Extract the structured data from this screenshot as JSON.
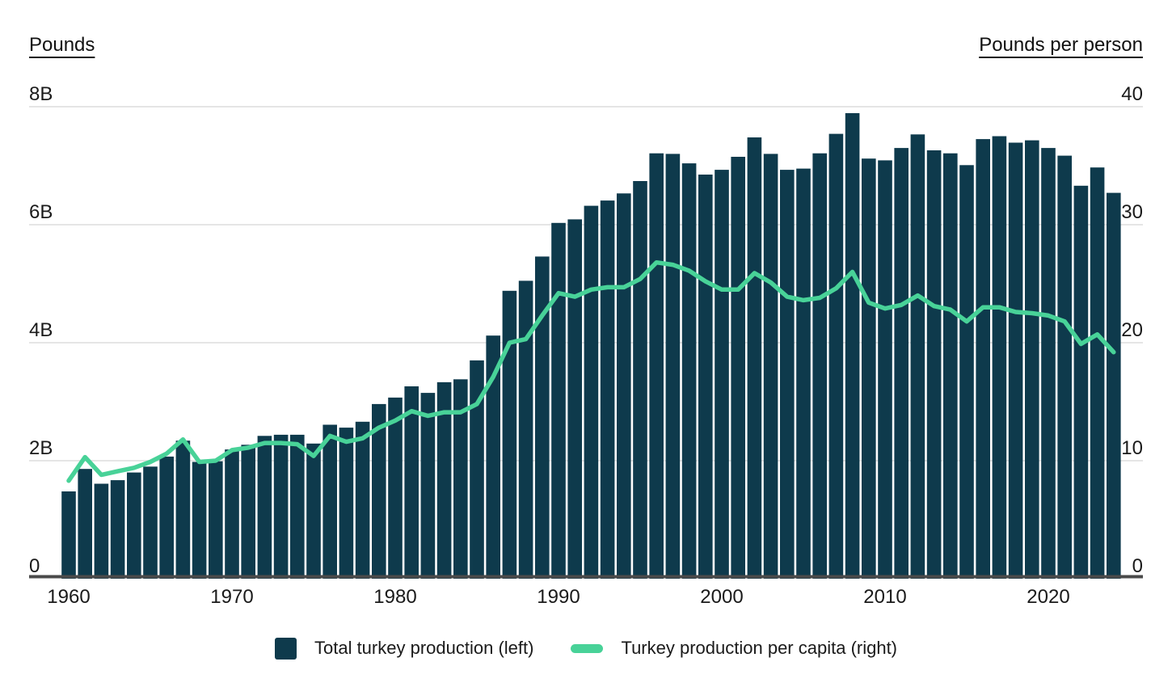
{
  "header": {
    "left_axis_title": "Pounds",
    "right_axis_title": "Pounds per person"
  },
  "legend": {
    "items": [
      {
        "label": "Total turkey production (left)",
        "swatch": "square",
        "color": "#0e3a4c"
      },
      {
        "label": "Turkey production per capita (right)",
        "swatch": "line",
        "color": "#48d298"
      }
    ]
  },
  "chart_data": {
    "type": "bar",
    "title": "",
    "x": [
      1960,
      1961,
      1962,
      1963,
      1964,
      1965,
      1966,
      1967,
      1968,
      1969,
      1970,
      1971,
      1972,
      1973,
      1974,
      1975,
      1976,
      1977,
      1978,
      1979,
      1980,
      1981,
      1982,
      1983,
      1984,
      1985,
      1986,
      1987,
      1988,
      1989,
      1990,
      1991,
      1992,
      1993,
      1994,
      1995,
      1996,
      1997,
      1998,
      1999,
      2000,
      2001,
      2002,
      2003,
      2004,
      2005,
      2006,
      2007,
      2008,
      2009,
      2010,
      2011,
      2012,
      2013,
      2014,
      2015,
      2016,
      2017,
      2018,
      2019,
      2020,
      2021,
      2022,
      2023,
      2024
    ],
    "series": [
      {
        "name": "Total turkey production (left)",
        "type": "bar",
        "axis": "left",
        "unit": "billion pounds",
        "color": "#0e3a4c",
        "values": [
          1.48,
          1.86,
          1.61,
          1.67,
          1.8,
          1.9,
          2.07,
          2.34,
          1.98,
          1.99,
          2.19,
          2.27,
          2.42,
          2.44,
          2.44,
          2.29,
          2.61,
          2.56,
          2.66,
          2.96,
          3.07,
          3.26,
          3.15,
          3.33,
          3.38,
          3.7,
          4.12,
          4.88,
          5.05,
          5.46,
          6.03,
          6.09,
          6.32,
          6.41,
          6.53,
          6.74,
          7.21,
          7.2,
          7.04,
          6.85,
          6.93,
          7.15,
          7.48,
          7.2,
          6.93,
          6.95,
          7.21,
          7.54,
          7.89,
          7.12,
          7.09,
          7.3,
          7.53,
          7.26,
          7.21,
          7.01,
          7.45,
          7.5,
          7.39,
          7.43,
          7.3,
          7.17,
          6.66,
          6.97,
          6.54
        ]
      },
      {
        "name": "Turkey production per capita (right)",
        "type": "line",
        "axis": "right",
        "unit": "pounds per person",
        "color": "#48d298",
        "values": [
          8.3,
          10.3,
          8.8,
          9.1,
          9.4,
          9.9,
          10.6,
          11.8,
          9.9,
          10.0,
          10.9,
          11.1,
          11.5,
          11.5,
          11.4,
          10.4,
          12.1,
          11.6,
          11.9,
          12.8,
          13.4,
          14.2,
          13.8,
          14.1,
          14.1,
          14.8,
          17.1,
          20.0,
          20.3,
          22.3,
          24.2,
          23.9,
          24.5,
          24.7,
          24.7,
          25.4,
          26.8,
          26.6,
          26.1,
          25.2,
          24.5,
          24.5,
          25.9,
          25.1,
          23.9,
          23.6,
          23.8,
          24.6,
          26.0,
          23.4,
          22.9,
          23.2,
          24.0,
          23.1,
          22.8,
          21.8,
          23.0,
          23.0,
          22.6,
          22.5,
          22.3,
          21.8,
          19.9,
          20.7,
          19.2
        ]
      }
    ],
    "left_axis": {
      "title": "Pounds",
      "ticks": [
        "0",
        "2B",
        "4B",
        "6B",
        "8B"
      ],
      "tick_values": [
        0,
        2,
        4,
        6,
        8
      ],
      "range": [
        0,
        8
      ]
    },
    "right_axis": {
      "title": "Pounds per person",
      "ticks": [
        "0",
        "10",
        "20",
        "30",
        "40"
      ],
      "tick_values": [
        0,
        10,
        20,
        30,
        40
      ],
      "range": [
        0,
        40
      ]
    },
    "x_ticks": [
      1960,
      1970,
      1980,
      1990,
      2000,
      2010,
      2020
    ],
    "grid": "horizontal",
    "grid_color": "#e5e5e5",
    "axis_color": "#4a4a4a",
    "text_color": "#1a1a1a",
    "legend_position": "bottom"
  }
}
